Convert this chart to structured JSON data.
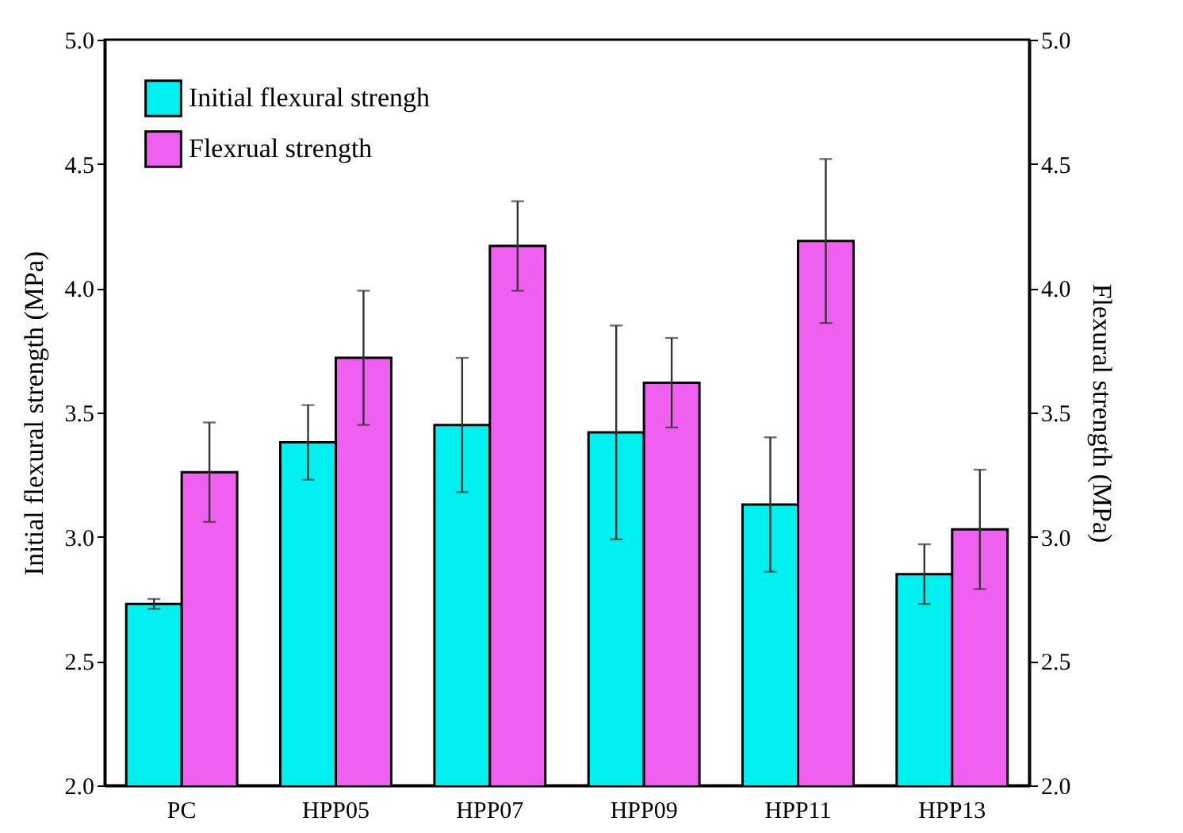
{
  "chart_data": {
    "type": "bar",
    "ylabel": "Initial flexural strength (MPa)",
    "y2label": "Flexural strength (MPa)",
    "categories": [
      "PC",
      "HPP05",
      "HPP07",
      "HPP09",
      "HPP11",
      "HPP13"
    ],
    "series": [
      {
        "name": "Initial flexural strengh",
        "color": "#00f0f0",
        "values": [
          2.73,
          3.38,
          3.45,
          3.42,
          3.13,
          2.85
        ],
        "errors": [
          [
            2.71,
            2.75
          ],
          [
            3.23,
            3.53
          ],
          [
            3.18,
            3.72
          ],
          [
            2.99,
            3.85
          ],
          [
            2.86,
            3.4
          ],
          [
            2.73,
            2.97
          ]
        ]
      },
      {
        "name": "Flexrual strength",
        "color": "#f060f0",
        "axis": "y2",
        "values": [
          3.26,
          3.72,
          4.17,
          3.62,
          4.19,
          3.03
        ],
        "errors": [
          [
            3.06,
            3.46
          ],
          [
            3.45,
            3.99
          ],
          [
            3.99,
            4.35
          ],
          [
            3.44,
            3.8
          ],
          [
            3.86,
            4.52
          ],
          [
            2.79,
            3.27
          ]
        ]
      }
    ],
    "ylim": [
      2.0,
      5.0
    ],
    "yticks": [
      {
        "value": 2,
        "label": "2.0"
      },
      {
        "value": 2.5,
        "label": "2.5"
      },
      {
        "value": 3,
        "label": "3.0"
      },
      {
        "value": 3.5,
        "label": "3.5"
      },
      {
        "value": 4,
        "label": "4.0"
      },
      {
        "value": 4.5,
        "label": "4.5"
      },
      {
        "value": 5,
        "label": "5.0"
      }
    ],
    "y2lim": [
      2.0,
      5.0
    ],
    "y2ticks": [
      {
        "value": 2,
        "label": "2.0"
      },
      {
        "value": 2.5,
        "label": "2.5"
      },
      {
        "value": 3,
        "label": "3.0"
      },
      {
        "value": 3.5,
        "label": "3.5"
      },
      {
        "value": 4,
        "label": "4.0"
      },
      {
        "value": 4.5,
        "label": "4.5"
      },
      {
        "value": 5,
        "label": "5.0"
      }
    ],
    "grid": false,
    "legend": "top left"
  }
}
